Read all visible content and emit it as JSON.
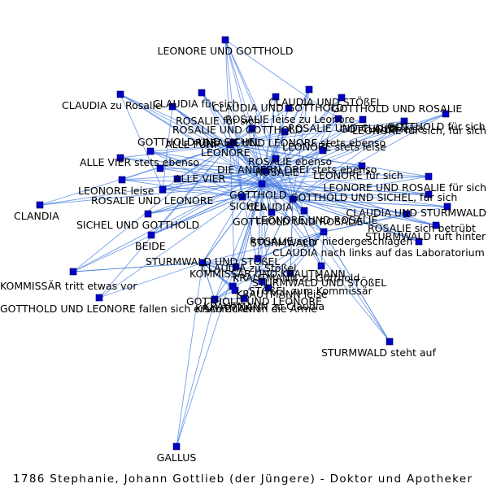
{
  "caption": "1786 Stephanie, Johann Gottlieb (der Jüngere) - Doktor und Apotheker",
  "colors": {
    "node": "#0000cc",
    "edge": "#4a7fe0",
    "text": "#000000"
  },
  "nodes": [
    {
      "id": 0,
      "label": "LEONORE UND GOTTHOLD"
    },
    {
      "id": 1,
      "label": "CLAUDIA zu Rosalie"
    },
    {
      "id": 2,
      "label": "CLAUDIA für sich"
    },
    {
      "id": 3,
      "label": "CLAUDIA UND STÖßEL"
    },
    {
      "id": 4,
      "label": "CLAUDIA UND GOTTHOLD"
    },
    {
      "id": 5,
      "label": "GOTTHOLD UND ROSALIE"
    },
    {
      "id": 6,
      "label": "ROSALIE für sich"
    },
    {
      "id": 7,
      "label": "ROSALIE leise zu Leonore"
    },
    {
      "id": 8,
      "label": "ROSALIE UND GOTTHOLD"
    },
    {
      "id": 9,
      "label": "ROSALIE UND CLAUDIA"
    },
    {
      "id": 10,
      "label": "GOTTHOLD für sich"
    },
    {
      "id": 11,
      "label": "GOTTHOLD leise"
    },
    {
      "id": 12,
      "label": "LEONORE für sich, für sich"
    },
    {
      "id": 13,
      "label": "ALLE FÜNF"
    },
    {
      "id": 14,
      "label": "GOTTHOLD UND SICHEL"
    },
    {
      "id": 15,
      "label": "ROSALIE UND LEONORE stets ebenso"
    },
    {
      "id": 16,
      "label": "LEONORE stets leise"
    },
    {
      "id": 17,
      "label": "LEONORE"
    },
    {
      "id": 18,
      "label": "ALLE VIER stets ebenso"
    },
    {
      "id": 19,
      "label": "ROSALIE ebenso"
    },
    {
      "id": 20,
      "label": "DIE ANDERN DREI stets ebenso"
    },
    {
      "id": 21,
      "label": "ROSALIE"
    },
    {
      "id": 22,
      "label": "ALLE VIER"
    },
    {
      "id": 23,
      "label": "LEONORE für sich"
    },
    {
      "id": 24,
      "label": "LEONORE leise"
    },
    {
      "id": 25,
      "label": "LEONORE UND ROSALIE für sich"
    },
    {
      "id": 26,
      "label": "GOTTHOLD"
    },
    {
      "id": 27,
      "label": "GOTTHOLD UND SICHEL, für sich"
    },
    {
      "id": 28,
      "label": "ROSALIE UND LEONORE"
    },
    {
      "id": 29,
      "label": "SICHEL"
    },
    {
      "id": 30,
      "label": "CLAUDIA"
    },
    {
      "id": 31,
      "label": "CLAUDIA UND STURMWALD"
    },
    {
      "id": 32,
      "label": "CLANDIA"
    },
    {
      "id": 33,
      "label": "SICHEL UND GOTTHOLD"
    },
    {
      "id": 34,
      "label": "GOTTHOLD UND ROSALIE"
    },
    {
      "id": 35,
      "label": "LEONORE UND ROSALIE"
    },
    {
      "id": 36,
      "label": "ROSALIE sich betrübt"
    },
    {
      "id": 37,
      "label": "STURMWALD ruft hinter"
    },
    {
      "id": 38,
      "label": "STURMWALD"
    },
    {
      "id": 39,
      "label": "ROSALIE sehr niedergeschlagen"
    },
    {
      "id": 40,
      "label": "BEIDE"
    },
    {
      "id": 41,
      "label": "STURMWALD UND STÖßEL"
    },
    {
      "id": 42,
      "label": "CLAUDIA nach links auf das Laboratorium"
    },
    {
      "id": 43,
      "label": "CLAUDIA zu Stößel"
    },
    {
      "id": 44,
      "label": "KOMMISSÄR UND KRAUTMANN"
    },
    {
      "id": 45,
      "label": "KRAUTMANN zu Gotthold"
    },
    {
      "id": 46,
      "label": "KOMMISSÄR tritt etwas vor"
    },
    {
      "id": 47,
      "label": "STURMWALD UND STÖßEL"
    },
    {
      "id": 48,
      "label": "STÖßEL zum Kommissär"
    },
    {
      "id": 49,
      "label": "KRAUTMANN leise"
    },
    {
      "id": 50,
      "label": "GOTTHOLD UND LEONORE"
    },
    {
      "id": 51,
      "label": "GOTTHOLD UND LEONORE fallen sich erschrocken in die Arme"
    },
    {
      "id": 52,
      "label": "KRAUTMANN zu Claudia"
    },
    {
      "id": 53,
      "label": "KRAUTMANN"
    },
    {
      "id": 54,
      "label": "STURMWALD steht auf"
    },
    {
      "id": 55,
      "label": "GALLUS"
    }
  ],
  "edges": [
    [
      0,
      26
    ],
    [
      0,
      21
    ],
    [
      0,
      17
    ],
    [
      0,
      29
    ],
    [
      0,
      30
    ],
    [
      0,
      35
    ],
    [
      0,
      9
    ],
    [
      1,
      21
    ],
    [
      1,
      26
    ],
    [
      1,
      30
    ],
    [
      1,
      17
    ],
    [
      1,
      28
    ],
    [
      2,
      30
    ],
    [
      2,
      21
    ],
    [
      2,
      26
    ],
    [
      2,
      17
    ],
    [
      3,
      30
    ],
    [
      3,
      41
    ],
    [
      3,
      26
    ],
    [
      3,
      21
    ],
    [
      4,
      26
    ],
    [
      4,
      30
    ],
    [
      4,
      21
    ],
    [
      4,
      17
    ],
    [
      5,
      26
    ],
    [
      5,
      21
    ],
    [
      5,
      30
    ],
    [
      6,
      21
    ],
    [
      6,
      26
    ],
    [
      6,
      17
    ],
    [
      6,
      30
    ],
    [
      6,
      28
    ],
    [
      7,
      21
    ],
    [
      7,
      17
    ],
    [
      7,
      26
    ],
    [
      8,
      26
    ],
    [
      8,
      21
    ],
    [
      8,
      17
    ],
    [
      8,
      30
    ],
    [
      9,
      21
    ],
    [
      9,
      30
    ],
    [
      9,
      26
    ],
    [
      10,
      26
    ],
    [
      10,
      21
    ],
    [
      10,
      29
    ],
    [
      10,
      30
    ],
    [
      11,
      26
    ],
    [
      11,
      21
    ],
    [
      11,
      17
    ],
    [
      12,
      17
    ],
    [
      12,
      21
    ],
    [
      12,
      26
    ],
    [
      12,
      30
    ],
    [
      13,
      26
    ],
    [
      13,
      21
    ],
    [
      13,
      17
    ],
    [
      13,
      29
    ],
    [
      13,
      30
    ],
    [
      14,
      26
    ],
    [
      14,
      29
    ],
    [
      14,
      21
    ],
    [
      14,
      17
    ],
    [
      15,
      21
    ],
    [
      15,
      17
    ],
    [
      15,
      26
    ],
    [
      16,
      17
    ],
    [
      16,
      21
    ],
    [
      16,
      26
    ],
    [
      17,
      26
    ],
    [
      17,
      21
    ],
    [
      17,
      29
    ],
    [
      17,
      30
    ],
    [
      17,
      38
    ],
    [
      17,
      23
    ],
    [
      18,
      26
    ],
    [
      18,
      21
    ],
    [
      18,
      17
    ],
    [
      19,
      21
    ],
    [
      19,
      17
    ],
    [
      19,
      26
    ],
    [
      20,
      26
    ],
    [
      20,
      21
    ],
    [
      20,
      17
    ],
    [
      21,
      26
    ],
    [
      21,
      29
    ],
    [
      21,
      30
    ],
    [
      21,
      38
    ],
    [
      21,
      35
    ],
    [
      21,
      23
    ],
    [
      21,
      28
    ],
    [
      22,
      26
    ],
    [
      22,
      21
    ],
    [
      22,
      17
    ],
    [
      22,
      29
    ],
    [
      23,
      17
    ],
    [
      23,
      26
    ],
    [
      23,
      30
    ],
    [
      24,
      17
    ],
    [
      24,
      26
    ],
    [
      24,
      21
    ],
    [
      24,
      29
    ],
    [
      25,
      21
    ],
    [
      25,
      17
    ],
    [
      25,
      26
    ],
    [
      25,
      30
    ],
    [
      26,
      29
    ],
    [
      26,
      30
    ],
    [
      26,
      38
    ],
    [
      26,
      28
    ],
    [
      26,
      33
    ],
    [
      26,
      40
    ],
    [
      26,
      41
    ],
    [
      26,
      44
    ],
    [
      26,
      50
    ],
    [
      26,
      34
    ],
    [
      26,
      27
    ],
    [
      26,
      36
    ],
    [
      26,
      37
    ],
    [
      27,
      26
    ],
    [
      27,
      29
    ],
    [
      27,
      21
    ],
    [
      28,
      21
    ],
    [
      28,
      17
    ],
    [
      28,
      26
    ],
    [
      28,
      29
    ],
    [
      29,
      30
    ],
    [
      29,
      38
    ],
    [
      29,
      33
    ],
    [
      29,
      40
    ],
    [
      29,
      44
    ],
    [
      29,
      47
    ],
    [
      30,
      38
    ],
    [
      30,
      31
    ],
    [
      30,
      42
    ],
    [
      30,
      43
    ],
    [
      30,
      35
    ],
    [
      30,
      36
    ],
    [
      30,
      39
    ],
    [
      30,
      52
    ],
    [
      31,
      30
    ],
    [
      31,
      38
    ],
    [
      31,
      26
    ],
    [
      32,
      26
    ],
    [
      32,
      21
    ],
    [
      32,
      17
    ],
    [
      33,
      29
    ],
    [
      33,
      26
    ],
    [
      33,
      21
    ],
    [
      34,
      26
    ],
    [
      34,
      21
    ],
    [
      34,
      30
    ],
    [
      35,
      17
    ],
    [
      35,
      21
    ],
    [
      35,
      26
    ],
    [
      35,
      30
    ],
    [
      36,
      21
    ],
    [
      36,
      30
    ],
    [
      36,
      26
    ],
    [
      37,
      38
    ],
    [
      37,
      30
    ],
    [
      37,
      26
    ],
    [
      38,
      41
    ],
    [
      38,
      47
    ],
    [
      38,
      43
    ],
    [
      38,
      44
    ],
    [
      38,
      54
    ],
    [
      38,
      45
    ],
    [
      38,
      48
    ],
    [
      39,
      21
    ],
    [
      39,
      30
    ],
    [
      39,
      26
    ],
    [
      40,
      26
    ],
    [
      40,
      29
    ],
    [
      40,
      21
    ],
    [
      40,
      17
    ],
    [
      41,
      38
    ],
    [
      41,
      43
    ],
    [
      41,
      44
    ],
    [
      41,
      26
    ],
    [
      42,
      30
    ],
    [
      42,
      26
    ],
    [
      42,
      38
    ],
    [
      43,
      30
    ],
    [
      43,
      41
    ],
    [
      43,
      44
    ],
    [
      44,
      45
    ],
    [
      44,
      48
    ],
    [
      44,
      49
    ],
    [
      44,
      50
    ],
    [
      44,
      26
    ],
    [
      44,
      53
    ],
    [
      44,
      46
    ],
    [
      45,
      26
    ],
    [
      45,
      44
    ],
    [
      45,
      53
    ],
    [
      46,
      44
    ],
    [
      46,
      26
    ],
    [
      46,
      21
    ],
    [
      46,
      17
    ],
    [
      47,
      38
    ],
    [
      47,
      48
    ],
    [
      47,
      44
    ],
    [
      47,
      26
    ],
    [
      48,
      44
    ],
    [
      48,
      45
    ],
    [
      48,
      26
    ],
    [
      49,
      44
    ],
    [
      49,
      53
    ],
    [
      49,
      26
    ],
    [
      50,
      26
    ],
    [
      50,
      17
    ],
    [
      50,
      44
    ],
    [
      50,
      53
    ],
    [
      51,
      26
    ],
    [
      51,
      17
    ],
    [
      51,
      44
    ],
    [
      52,
      53
    ],
    [
      52,
      30
    ],
    [
      52,
      44
    ],
    [
      53,
      26
    ],
    [
      53,
      44
    ],
    [
      53,
      38
    ],
    [
      54,
      38
    ],
    [
      54,
      30
    ],
    [
      54,
      26
    ],
    [
      55,
      26
    ],
    [
      55,
      44
    ],
    [
      55,
      53
    ]
  ]
}
